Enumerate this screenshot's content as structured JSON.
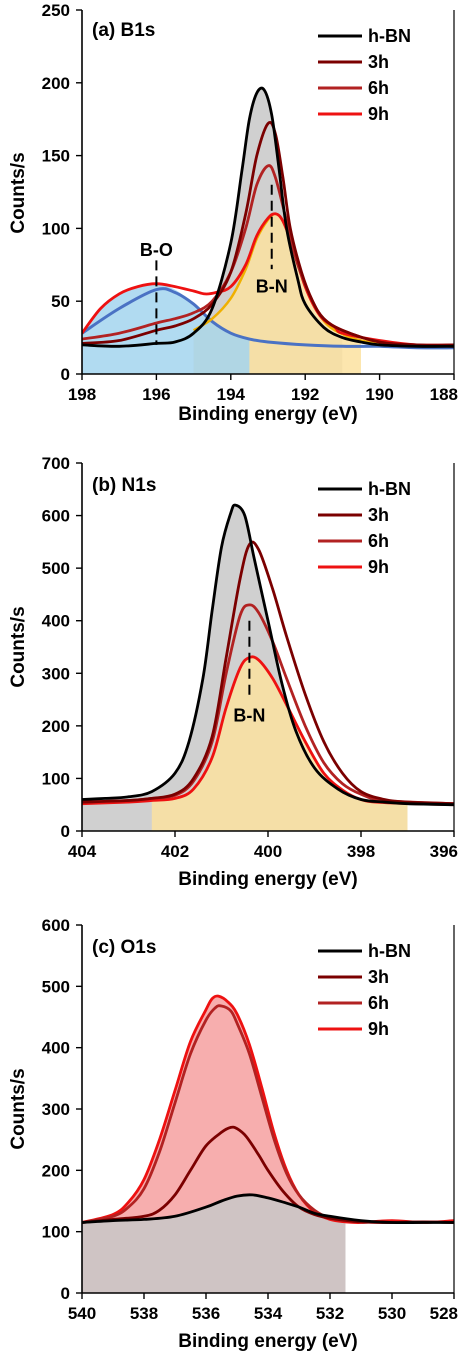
{
  "colors": {
    "h-BN": "#000000",
    "3h": "#7b0000",
    "6h": "#b22222",
    "9h": "#ee1111",
    "fill_gray": "#c8c8c8",
    "fill_yellow": "#fbe2a0",
    "fill_blue": "#a3d5ee",
    "fill_green": "#cfe3b0",
    "fill_red": "#f6a0a0",
    "baseline_blue": "#4a72c4",
    "envelope_orange": "#f0b000"
  },
  "chart_data": [
    {
      "type": "line",
      "title": "(a) B1s",
      "xlabel": "Binding energy (eV)",
      "ylabel": "Counts/s",
      "xlim": [
        198,
        188
      ],
      "ylim": [
        0,
        250
      ],
      "xticks": [
        198,
        196,
        194,
        192,
        190,
        188
      ],
      "yticks": [
        0,
        50,
        100,
        150,
        200,
        250
      ],
      "x_reversed": true,
      "grid": false,
      "legend": "top-right",
      "series": [
        {
          "name": "h-BN",
          "color_key": "h-BN",
          "x": [
            198,
            197,
            196,
            195.5,
            195,
            194.5,
            194,
            193.7,
            193.5,
            193.3,
            193.1,
            192.9,
            192.7,
            192.5,
            192.2,
            192,
            191.5,
            191,
            190.5,
            190,
            189,
            188
          ],
          "y": [
            20,
            19,
            21,
            22,
            28,
            45,
            90,
            140,
            175,
            193,
            195,
            178,
            140,
            100,
            65,
            48,
            32,
            25,
            22,
            20,
            19,
            19
          ]
        },
        {
          "name": "3h",
          "color_key": "3h",
          "x": [
            198,
            197,
            196,
            195.5,
            195,
            194.5,
            194,
            193.6,
            193.3,
            193,
            192.8,
            192.6,
            192.4,
            192.1,
            191.8,
            191.5,
            191,
            190,
            189,
            188
          ],
          "y": [
            21,
            23,
            30,
            33,
            38,
            48,
            70,
            110,
            150,
            172,
            165,
            135,
            100,
            70,
            50,
            38,
            30,
            22,
            20,
            20
          ]
        },
        {
          "name": "6h",
          "color_key": "6h",
          "x": [
            198,
            197,
            196,
            195.5,
            195,
            194.5,
            194,
            193.6,
            193.3,
            193,
            192.8,
            192.5,
            192.2,
            191.8,
            191.5,
            191,
            190,
            189,
            188
          ],
          "y": [
            24,
            28,
            35,
            38,
            42,
            50,
            70,
            100,
            130,
            143,
            135,
            105,
            75,
            50,
            38,
            30,
            22,
            20,
            19
          ]
        },
        {
          "name": "9h",
          "color_key": "9h",
          "x": [
            198,
            197.5,
            197,
            196.5,
            196,
            195.5,
            195,
            194.7,
            194.4,
            194,
            193.6,
            193.3,
            193,
            192.8,
            192.6,
            192.3,
            192,
            191.6,
            191.2,
            191,
            190,
            189,
            188
          ],
          "y": [
            28,
            45,
            55,
            60,
            62,
            60,
            57,
            55,
            56,
            60,
            75,
            95,
            107,
            110,
            105,
            85,
            60,
            40,
            32,
            28,
            23,
            20,
            20
          ]
        }
      ],
      "fills": [
        {
          "color_key": "fill_gray",
          "x": [
            195,
            194.5,
            194,
            193.7,
            193.5,
            193.3,
            193.1,
            192.9,
            192.7,
            192.5,
            192.2,
            192,
            191.5,
            191
          ],
          "y": [
            28,
            45,
            90,
            140,
            175,
            193,
            195,
            178,
            140,
            100,
            65,
            48,
            32,
            25
          ]
        },
        {
          "color_key": "fill_yellow",
          "x": [
            195,
            194.5,
            194,
            193.6,
            193.3,
            193,
            192.8,
            192.6,
            192.3,
            192,
            191.6,
            191.2,
            191,
            190.5
          ],
          "y": [
            30,
            38,
            52,
            72,
            93,
            106,
            110,
            105,
            85,
            60,
            40,
            30,
            26,
            22
          ]
        },
        {
          "color_key": "fill_blue",
          "x": [
            198,
            197.5,
            197,
            196.5,
            196,
            195.5,
            195,
            194.5,
            194,
            193.5
          ],
          "y": [
            28,
            45,
            55,
            60,
            62,
            58,
            48,
            36,
            28,
            24
          ]
        }
      ],
      "annotations": [
        {
          "text": "B-O",
          "x": 196,
          "y": 85
        },
        {
          "text": "B-N",
          "x": 192.9,
          "y": 60
        }
      ]
    },
    {
      "type": "line",
      "title": "(b) N1s",
      "xlabel": "Binding energy (eV)",
      "ylabel": "Counts/s",
      "xlim": [
        404,
        396
      ],
      "ylim": [
        0,
        700
      ],
      "xticks": [
        404,
        402,
        400,
        398,
        396
      ],
      "yticks": [
        0,
        100,
        200,
        300,
        400,
        500,
        600,
        700
      ],
      "x_reversed": true,
      "grid": false,
      "legend": "top-right",
      "series": [
        {
          "name": "h-BN",
          "color_key": "h-BN",
          "x": [
            404,
            403.5,
            403,
            402.5,
            402,
            401.7,
            401.4,
            401.2,
            401,
            400.8,
            400.7,
            400.5,
            400.3,
            400,
            399.7,
            399.4,
            399,
            398.5,
            398,
            397.5,
            397,
            396
          ],
          "y": [
            60,
            62,
            65,
            75,
            110,
            170,
            290,
            420,
            540,
            605,
            620,
            600,
            520,
            400,
            280,
            190,
            120,
            80,
            60,
            55,
            52,
            50
          ]
        },
        {
          "name": "3h",
          "color_key": "3h",
          "x": [
            404,
            403,
            402.5,
            402,
            401.6,
            401.2,
            400.9,
            400.6,
            400.4,
            400.2,
            399.9,
            399.6,
            399.2,
            398.8,
            398.4,
            398,
            397.5,
            397,
            396
          ],
          "y": [
            55,
            58,
            62,
            70,
            100,
            180,
            330,
            480,
            545,
            535,
            460,
            370,
            260,
            170,
            110,
            75,
            60,
            55,
            52
          ]
        },
        {
          "name": "6h",
          "color_key": "6h",
          "x": [
            404,
            403,
            402.5,
            402,
            401.6,
            401.2,
            400.9,
            400.6,
            400.4,
            400.2,
            399.9,
            399.6,
            399.2,
            398.8,
            398.4,
            398,
            397.5,
            396
          ],
          "y": [
            55,
            58,
            62,
            68,
            95,
            170,
            300,
            410,
            430,
            415,
            360,
            290,
            200,
            130,
            90,
            70,
            58,
            52
          ]
        },
        {
          "name": "9h",
          "color_key": "9h",
          "x": [
            404,
            403,
            402.5,
            402,
            401.6,
            401.2,
            400.9,
            400.6,
            400.4,
            400.2,
            399.9,
            399.6,
            399.2,
            398.8,
            398.4,
            398,
            397.5,
            396
          ],
          "y": [
            52,
            55,
            58,
            62,
            80,
            140,
            235,
            310,
            330,
            325,
            290,
            240,
            170,
            110,
            78,
            60,
            54,
            50
          ]
        }
      ],
      "fills": [
        {
          "color_key": "fill_gray",
          "x": [
            404,
            403.5,
            403,
            402.5,
            402,
            401.7,
            401.4,
            401.2,
            401,
            400.8,
            400.7,
            400.5,
            400.3,
            400,
            399.7,
            399.4,
            399,
            398.5,
            398,
            397.5,
            397
          ],
          "y": [
            60,
            62,
            65,
            75,
            110,
            170,
            290,
            420,
            540,
            605,
            620,
            600,
            520,
            400,
            280,
            190,
            120,
            80,
            60,
            55,
            52
          ]
        },
        {
          "color_key": "fill_yellow",
          "x": [
            402.5,
            402,
            401.6,
            401.2,
            400.9,
            400.6,
            400.4,
            400.2,
            399.9,
            399.6,
            399.2,
            398.8,
            398.4,
            398,
            397.5,
            397
          ],
          "y": [
            58,
            62,
            80,
            140,
            235,
            310,
            330,
            325,
            290,
            240,
            170,
            110,
            78,
            60,
            54,
            52
          ]
        }
      ],
      "annotations": [
        {
          "text": "B-N",
          "x": 400.4,
          "y": 220
        }
      ]
    },
    {
      "type": "line",
      "title": "(c) O1s",
      "xlabel": "Binding energy (eV)",
      "ylabel": "Counts/s",
      "xlim": [
        540,
        528
      ],
      "ylim": [
        0,
        600
      ],
      "xticks": [
        540,
        538,
        536,
        534,
        532,
        530,
        528
      ],
      "yticks": [
        0,
        100,
        200,
        300,
        400,
        500,
        600
      ],
      "x_reversed": true,
      "grid": false,
      "legend": "top-right",
      "series": [
        {
          "name": "h-BN",
          "color_key": "h-BN",
          "x": [
            540,
            539,
            538,
            537,
            536,
            535.5,
            535,
            534.5,
            534,
            533.5,
            533,
            532.5,
            532,
            531,
            530,
            529,
            528
          ],
          "y": [
            115,
            118,
            120,
            125,
            140,
            150,
            158,
            160,
            155,
            148,
            140,
            130,
            125,
            118,
            115,
            115,
            115
          ]
        },
        {
          "name": "3h",
          "color_key": "3h",
          "x": [
            540,
            539,
            538,
            537.5,
            537,
            536.5,
            536,
            535.5,
            535.2,
            535,
            534.7,
            534.3,
            534,
            533.5,
            533,
            532.5,
            532,
            531,
            530,
            529,
            528
          ],
          "y": [
            115,
            120,
            125,
            135,
            160,
            200,
            240,
            262,
            270,
            268,
            255,
            225,
            200,
            165,
            140,
            128,
            122,
            116,
            115,
            116,
            115
          ]
        },
        {
          "name": "6h",
          "color_key": "6h",
          "x": [
            540,
            539,
            538.5,
            538,
            537.5,
            537,
            536.5,
            536,
            535.7,
            535.5,
            535.2,
            535,
            534.6,
            534.2,
            533.8,
            533.4,
            533,
            532.5,
            532,
            531.5,
            531,
            530,
            529,
            528
          ],
          "y": [
            115,
            125,
            140,
            170,
            230,
            310,
            390,
            445,
            465,
            468,
            460,
            440,
            390,
            320,
            250,
            195,
            160,
            135,
            122,
            118,
            116,
            115,
            116,
            115
          ]
        },
        {
          "name": "9h",
          "color_key": "9h",
          "x": [
            540,
            539,
            538.5,
            538,
            537.5,
            537,
            536.5,
            536,
            535.8,
            535.6,
            535.3,
            535,
            534.6,
            534.2,
            533.8,
            533.4,
            533,
            532.5,
            532,
            531.5,
            531,
            530,
            529,
            528
          ],
          "y": [
            115,
            128,
            148,
            185,
            250,
            330,
            410,
            462,
            480,
            484,
            475,
            455,
            405,
            335,
            260,
            200,
            160,
            132,
            120,
            116,
            115,
            118,
            115,
            118
          ]
        }
      ],
      "fills": [
        {
          "color_key": "fill_red",
          "x": [
            540,
            539,
            538.5,
            538,
            537.5,
            537,
            536.5,
            536,
            535.8,
            535.6,
            535.3,
            535,
            534.6,
            534.2,
            533.8,
            533.4,
            533,
            532.5,
            532,
            531.5
          ],
          "y": [
            115,
            128,
            148,
            185,
            250,
            330,
            410,
            462,
            480,
            484,
            475,
            455,
            405,
            335,
            260,
            200,
            160,
            132,
            120,
            116
          ]
        },
        {
          "color_key": "fill_gray",
          "x": [
            540,
            539,
            538,
            537,
            536,
            535.5,
            535,
            534.5,
            534,
            533.5,
            533,
            532.5,
            532,
            531.5
          ],
          "y": [
            115,
            118,
            120,
            125,
            140,
            150,
            158,
            160,
            155,
            148,
            140,
            130,
            125,
            120
          ]
        }
      ],
      "annotations": []
    }
  ]
}
